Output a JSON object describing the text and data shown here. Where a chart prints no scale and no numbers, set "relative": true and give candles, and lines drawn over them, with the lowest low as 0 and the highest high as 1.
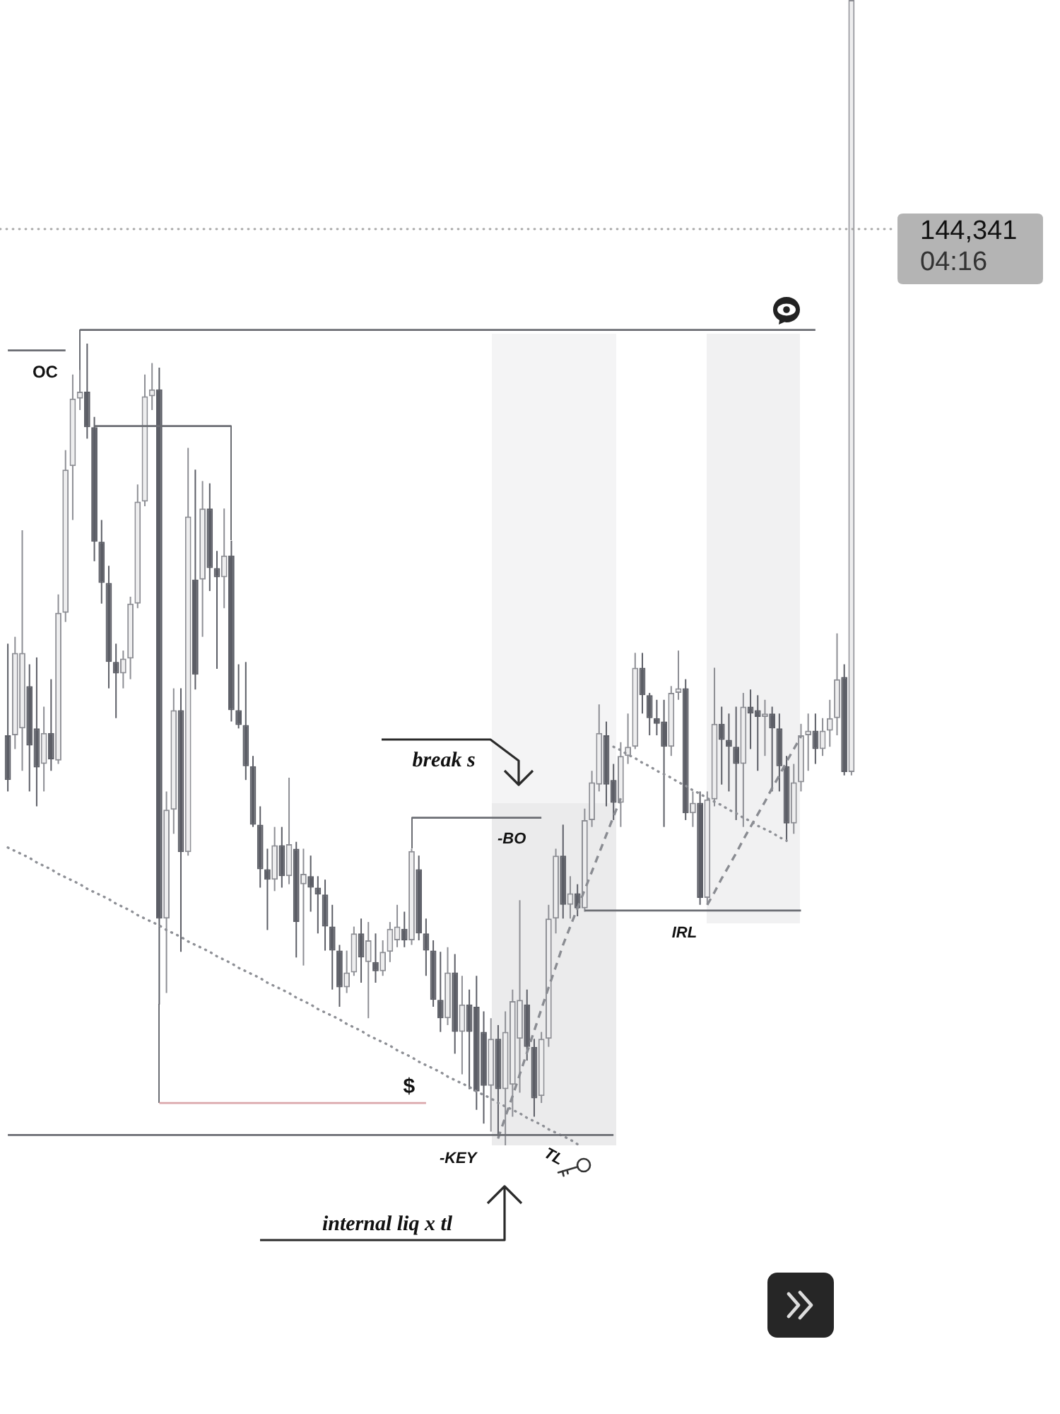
{
  "chart_data": {
    "type": "candlestick",
    "relative": true,
    "tick_labels": false,
    "categories": [
      null,
      null,
      null,
      null,
      null,
      null,
      null,
      null,
      null,
      null,
      null,
      null,
      null,
      null,
      null,
      null,
      null,
      null,
      null,
      null,
      null,
      null,
      null,
      null,
      null,
      null,
      null,
      null,
      null,
      null,
      null,
      null,
      null,
      null,
      null,
      null,
      null,
      null,
      null,
      null,
      null,
      null,
      null,
      null,
      null,
      null,
      null,
      null,
      null,
      null,
      null,
      null,
      null,
      null,
      null,
      null,
      null,
      null,
      null,
      null,
      null,
      null,
      null,
      null,
      null,
      null,
      null,
      null,
      null,
      null,
      null,
      null,
      null,
      null,
      null,
      null,
      null,
      null,
      null,
      null,
      null,
      null,
      null,
      null,
      null,
      null,
      null,
      null,
      null,
      null,
      null,
      null,
      null,
      null,
      null,
      null,
      null,
      null,
      null,
      null,
      null,
      null,
      null,
      null,
      null,
      null,
      null,
      null,
      null,
      null,
      null,
      null,
      null,
      null,
      null,
      null,
      null,
      null
    ],
    "ohlc": [
      [
        0.358,
        0.438,
        0.309,
        0.319
      ],
      [
        0.358,
        0.444,
        0.346,
        0.43
      ],
      [
        0.364,
        0.537,
        0.327,
        0.43
      ],
      [
        0.401,
        0.42,
        0.309,
        0.349
      ],
      [
        0.364,
        0.426,
        0.296,
        0.33
      ],
      [
        0.333,
        0.383,
        0.309,
        0.36
      ],
      [
        0.36,
        0.407,
        0.327,
        0.337
      ],
      [
        0.336,
        0.481,
        0.333,
        0.465
      ],
      [
        0.465,
        0.607,
        0.457,
        0.59
      ],
      [
        0.593,
        0.673,
        0.546,
        0.652
      ],
      [
        0.652,
        0.677,
        0.642,
        0.658
      ],
      [
        0.658,
        0.7,
        0.617,
        0.627
      ],
      [
        0.627,
        0.636,
        0.51,
        0.527
      ],
      [
        0.527,
        0.546,
        0.473,
        0.491
      ],
      [
        0.491,
        0.506,
        0.399,
        0.422
      ],
      [
        0.422,
        0.438,
        0.373,
        0.412
      ],
      [
        0.412,
        0.432,
        0.399,
        0.425
      ],
      [
        0.425,
        0.479,
        0.407,
        0.473
      ],
      [
        0.473,
        0.577,
        0.469,
        0.562
      ],
      [
        0.562,
        0.673,
        0.558,
        0.654
      ],
      [
        0.654,
        0.683,
        0.642,
        0.66
      ],
      [
        0.66,
        0.679,
        0.123,
        0.198
      ],
      [
        0.198,
        0.309,
        0.133,
        0.293
      ],
      [
        0.293,
        0.399,
        0.272,
        0.38
      ],
      [
        0.38,
        0.399,
        0.169,
        0.256
      ],
      [
        0.256,
        0.609,
        0.253,
        0.549
      ],
      [
        0.494,
        0.59,
        0.398,
        0.411
      ],
      [
        0.494,
        0.58,
        0.444,
        0.556
      ],
      [
        0.556,
        0.578,
        0.484,
        0.504
      ],
      [
        0.504,
        0.519,
        0.416,
        0.496
      ],
      [
        0.496,
        0.556,
        0.469,
        0.515
      ],
      [
        0.515,
        0.528,
        0.37,
        0.38
      ],
      [
        0.38,
        0.42,
        0.364,
        0.367
      ],
      [
        0.367,
        0.422,
        0.319,
        0.331
      ],
      [
        0.331,
        0.34,
        0.278,
        0.28
      ],
      [
        0.28,
        0.296,
        0.225,
        0.241
      ],
      [
        0.241,
        0.259,
        0.188,
        0.232
      ],
      [
        0.232,
        0.278,
        0.222,
        0.262
      ],
      [
        0.262,
        0.278,
        0.225,
        0.235
      ],
      [
        0.235,
        0.321,
        0.228,
        0.263
      ],
      [
        0.259,
        0.265,
        0.164,
        0.195
      ],
      [
        0.228,
        0.259,
        0.157,
        0.237
      ],
      [
        0.235,
        0.253,
        0.204,
        0.225
      ],
      [
        0.225,
        0.235,
        0.185,
        0.219
      ],
      [
        0.219,
        0.232,
        0.17,
        0.191
      ],
      [
        0.191,
        0.21,
        0.136,
        0.17
      ],
      [
        0.17,
        0.175,
        0.121,
        0.138
      ],
      [
        0.138,
        0.17,
        0.133,
        0.151
      ],
      [
        0.151,
        0.191,
        0.148,
        0.185
      ],
      [
        0.185,
        0.198,
        0.142,
        0.164
      ],
      [
        0.16,
        0.195,
        0.111,
        0.179
      ],
      [
        0.16,
        0.185,
        0.142,
        0.152
      ],
      [
        0.152,
        0.179,
        0.148,
        0.169
      ],
      [
        0.169,
        0.195,
        0.16,
        0.189
      ],
      [
        0.179,
        0.21,
        0.173,
        0.191
      ],
      [
        0.189,
        0.204,
        0.173,
        0.179
      ],
      [
        0.179,
        0.259,
        0.175,
        0.257
      ],
      [
        0.241,
        0.253,
        0.179,
        0.185
      ],
      [
        0.185,
        0.198,
        0.148,
        0.17
      ],
      [
        0.17,
        0.179,
        0.121,
        0.127
      ],
      [
        0.127,
        0.169,
        0.099,
        0.111
      ],
      [
        0.111,
        0.173,
        0.105,
        0.151
      ],
      [
        0.151,
        0.167,
        0.08,
        0.099
      ],
      [
        0.099,
        0.148,
        0.062,
        0.123
      ],
      [
        0.123,
        0.136,
        0.049,
        0.099
      ],
      [
        0.121,
        0.148,
        0.031,
        0.047
      ],
      [
        0.099,
        0.117,
        0.019,
        0.052
      ],
      [
        0.052,
        0.111,
        0.012,
        0.093
      ],
      [
        0.093,
        0.105,
        0.006,
        0.049
      ],
      [
        0.049,
        0.117,
        0,
        0.099
      ],
      [
        0.053,
        0.136,
        0.025,
        0.126
      ],
      [
        0.093,
        0.214,
        0.046,
        0.127
      ],
      [
        0.123,
        0.136,
        0.074,
        0.086
      ],
      [
        0.086,
        0.093,
        0.025,
        0.041
      ],
      [
        0.043,
        0.099,
        0.037,
        0.093
      ],
      [
        0.093,
        0.21,
        0.086,
        0.198
      ],
      [
        0.198,
        0.259,
        0.185,
        0.253
      ],
      [
        0.253,
        0.28,
        0.198,
        0.21
      ],
      [
        0.21,
        0.235,
        0.198,
        0.22
      ],
      [
        0.22,
        0.228,
        0.2,
        0.207
      ],
      [
        0.207,
        0.294,
        0.204,
        0.284
      ],
      [
        0.284,
        0.327,
        0.278,
        0.317
      ],
      [
        0.315,
        0.385,
        0.309,
        0.36
      ],
      [
        0.358,
        0.37,
        0.296,
        0.315
      ],
      [
        0.319,
        0.333,
        0.284,
        0.299
      ],
      [
        0.299,
        0.352,
        0.278,
        0.34
      ],
      [
        0.34,
        0.377,
        0.333,
        0.348
      ],
      [
        0.348,
        0.43,
        0.346,
        0.417
      ],
      [
        0.417,
        0.43,
        0.377,
        0.393
      ],
      [
        0.393,
        0.395,
        0.358,
        0.373
      ],
      [
        0.373,
        0.389,
        0.358,
        0.368
      ],
      [
        0.37,
        0.389,
        0.278,
        0.348
      ],
      [
        0.348,
        0.401,
        0.34,
        0.395
      ],
      [
        0.395,
        0.432,
        0.389,
        0.399
      ],
      [
        0.399,
        0.407,
        0.284,
        0.29
      ],
      [
        0.29,
        0.309,
        0.278,
        0.299
      ],
      [
        0.299,
        0.309,
        0.21,
        0.216
      ],
      [
        0.216,
        0.309,
        0.21,
        0.302
      ],
      [
        0.302,
        0.417,
        0.296,
        0.368
      ],
      [
        0.368,
        0.383,
        0.315,
        0.354
      ],
      [
        0.354,
        0.377,
        0.309,
        0.348
      ],
      [
        0.348,
        0.383,
        0.284,
        0.333
      ],
      [
        0.333,
        0.395,
        0.278,
        0.383
      ],
      [
        0.383,
        0.398,
        0.346,
        0.377
      ],
      [
        0.38,
        0.393,
        0.327,
        0.374
      ],
      [
        0.374,
        0.389,
        0.34,
        0.377
      ],
      [
        0.377,
        0.383,
        0.309,
        0.364
      ],
      [
        0.364,
        0.377,
        0.309,
        0.331
      ],
      [
        0.331,
        0.34,
        0.265,
        0.281
      ],
      [
        0.281,
        0.333,
        0.272,
        0.317
      ],
      [
        0.317,
        0.368,
        0.309,
        0.358
      ],
      [
        0.358,
        0.377,
        0.327,
        0.362
      ],
      [
        0.362,
        0.377,
        0.333,
        0.346
      ],
      [
        0.346,
        0.373,
        0.34,
        0.362
      ],
      [
        0.362,
        0.389,
        0.348,
        0.373
      ],
      [
        0.373,
        0.447,
        0.358,
        0.407
      ],
      [
        0.409,
        0.42,
        0.323,
        0.326
      ],
      [
        0.326,
        1,
        0.323,
        1
      ]
    ],
    "colors": [
      "#5c5e66",
      "#8d8e94",
      "#8d8e94",
      "#5c5e66",
      "#5c5e66",
      "#8d8e94",
      "#5c5e66",
      "#8d8e94",
      "#8d8e94",
      "#8d8e94",
      "#8d8e94",
      "#5c5e66",
      "#5c5e66",
      "#5c5e66",
      "#5c5e66",
      "#5c5e66",
      "#8d8e94",
      "#8d8e94",
      "#8d8e94",
      "#8d8e94",
      "#8d8e94",
      "#5c5e66",
      "#8d8e94",
      "#8d8e94",
      "#5c5e66",
      "#8d8e94",
      "#5c5e66",
      "#8d8e94",
      "#5c5e66",
      "#5c5e66",
      "#8d8e94",
      "#5c5e66",
      "#5c5e66",
      "#5c5e66",
      "#5c5e66",
      "#5c5e66",
      "#5c5e66",
      "#8d8e94",
      "#5c5e66",
      "#8d8e94",
      "#5c5e66",
      "#8d8e94",
      "#5c5e66",
      "#5c5e66",
      "#5c5e66",
      "#5c5e66",
      "#5c5e66",
      "#8d8e94",
      "#8d8e94",
      "#5c5e66",
      "#8d8e94",
      "#5c5e66",
      "#8d8e94",
      "#8d8e94",
      "#8d8e94",
      "#5c5e66",
      "#8d8e94",
      "#5c5e66",
      "#5c5e66",
      "#5c5e66",
      "#5c5e66",
      "#8d8e94",
      "#5c5e66",
      "#8d8e94",
      "#5c5e66",
      "#5c5e66",
      "#5c5e66",
      "#8d8e94",
      "#5c5e66",
      "#8d8e94",
      "#8d8e94",
      "#8d8e94",
      "#5c5e66",
      "#5c5e66",
      "#8d8e94",
      "#8d8e94",
      "#8d8e94",
      "#5c5e66",
      "#8d8e94",
      "#5c5e66",
      "#8d8e94",
      "#8d8e94",
      "#8d8e94",
      "#5c5e66",
      "#5c5e66",
      "#8d8e94",
      "#8d8e94",
      "#8d8e94",
      "#5c5e66",
      "#5c5e66",
      "#5c5e66",
      "#5c5e66",
      "#8d8e94",
      "#8d8e94",
      "#5c5e66",
      "#8d8e94",
      "#5c5e66",
      "#8d8e94",
      "#8d8e94",
      "#5c5e66",
      "#5c5e66",
      "#5c5e66",
      "#8d8e94",
      "#5c5e66",
      "#5c5e66",
      "#8d8e94",
      "#5c5e66",
      "#5c5e66",
      "#5c5e66",
      "#8d8e94",
      "#8d8e94",
      "#8d8e94",
      "#5c5e66",
      "#8d8e94",
      "#8d8e94",
      "#8d8e94",
      "#5c5e66",
      "#8d8e94"
    ],
    "series": [
      {
        "type": "line",
        "name": "OC",
        "color": "#6b6d73",
        "line_style": "solid",
        "values": [
          0.694,
          0.694,
          0.694,
          0.694,
          0.694,
          0.694,
          0.694,
          0.694,
          0.694,
          null,
          null,
          null,
          null,
          null,
          null,
          null,
          null,
          null,
          null,
          null,
          null,
          null,
          null,
          null,
          null,
          null,
          null,
          null,
          null,
          null,
          null,
          null,
          null,
          null,
          null,
          null,
          null,
          null,
          null,
          null,
          null,
          null,
          null,
          null,
          null,
          null,
          null,
          null,
          null,
          null,
          null,
          null,
          null,
          null,
          null,
          null,
          null,
          null,
          null,
          null,
          null,
          null,
          null,
          null,
          null,
          null,
          null,
          null,
          null,
          null,
          null,
          null,
          null,
          null,
          null,
          null,
          null,
          null,
          null,
          null,
          null,
          null,
          null,
          null,
          null,
          null,
          null,
          null,
          null,
          null,
          null,
          null,
          null,
          null,
          null,
          null,
          null,
          null,
          null,
          null,
          null,
          null,
          null,
          null,
          null,
          null,
          null,
          null,
          null,
          null,
          null,
          null,
          null,
          null,
          null,
          null,
          null,
          null
        ]
      },
      {
        "type": "line",
        "color": "#6b6d73",
        "line_style": "solid",
        "values": [
          null,
          null,
          null,
          null,
          null,
          null,
          null,
          null,
          null,
          null,
          0.712,
          0.712,
          0.712,
          0.712,
          0.712,
          0.712,
          0.712,
          0.712,
          0.712,
          0.712,
          0.712,
          0.712,
          0.712,
          0.712,
          0.712,
          0.712,
          0.712,
          0.712,
          0.712,
          0.712,
          0.712,
          0.712,
          0.712,
          0.712,
          0.712,
          0.712,
          0.712,
          0.712,
          0.712,
          0.712,
          0.712,
          0.712,
          0.712,
          0.712,
          0.712,
          0.712,
          0.712,
          0.712,
          0.712,
          0.712,
          0.712,
          0.712,
          0.712,
          0.712,
          0.712,
          0.712,
          0.712,
          0.712,
          0.712,
          0.712,
          0.712,
          0.712,
          0.712,
          0.712,
          0.712,
          0.712,
          0.712,
          0.712,
          0.712,
          0.712,
          0.712,
          0.712,
          0.712,
          0.712,
          0.712,
          0.712,
          0.712,
          0.712,
          0.712,
          0.712,
          0.712,
          0.712,
          0.712,
          0.712,
          0.712,
          0.712,
          0.712,
          0.712,
          0.712,
          0.712,
          0.712,
          0.712,
          0.712,
          0.712,
          0.712,
          0.712,
          0.712,
          0.712,
          0.712,
          0.712,
          0.712,
          0.712,
          0.712,
          0.712,
          0.712,
          0.712,
          0.712,
          0.712,
          0.712,
          0.712,
          0.712,
          0.712,
          0.712,
          null,
          null,
          null,
          null,
          null
        ]
      },
      {
        "type": "line",
        "color": "#6b6d73",
        "line_style": "solid",
        "values": [
          null,
          null,
          null,
          null,
          null,
          null,
          null,
          null,
          null,
          null,
          null,
          null,
          0.628,
          0.628,
          0.628,
          0.628,
          0.628,
          0.628,
          0.628,
          0.628,
          0.628,
          0.628,
          0.628,
          0.628,
          0.628,
          0.628,
          0.628,
          0.628,
          0.628,
          0.628,
          0.628,
          0.628,
          null,
          null,
          null,
          null,
          null,
          null,
          null,
          null,
          null,
          null,
          null,
          null,
          null,
          null,
          null,
          null,
          null,
          null,
          null,
          null,
          null,
          null,
          null,
          null,
          null,
          null,
          null,
          null,
          null,
          null,
          null,
          null,
          null,
          null,
          null,
          null,
          null,
          null,
          null,
          null,
          null,
          null,
          null,
          null,
          null,
          null,
          null,
          null,
          null,
          null,
          null,
          null,
          null,
          null,
          null,
          null,
          null,
          null,
          null,
          null,
          null,
          null,
          null,
          null,
          null,
          null,
          null,
          null,
          null,
          null,
          null,
          null,
          null,
          null,
          null,
          null,
          null,
          null,
          null,
          null,
          null,
          null,
          null,
          null,
          null,
          null
        ]
      },
      {
        "type": "line",
        "name": "$",
        "color": "#dba7ab",
        "line_style": "solid",
        "values": [
          null,
          null,
          null,
          null,
          null,
          null,
          null,
          null,
          null,
          null,
          null,
          null,
          null,
          null,
          null,
          null,
          null,
          null,
          null,
          null,
          null,
          0.037,
          0.037,
          0.037,
          0.037,
          0.037,
          0.037,
          0.037,
          0.037,
          0.037,
          0.037,
          0.037,
          0.037,
          0.037,
          0.037,
          0.037,
          0.037,
          0.037,
          0.037,
          0.037,
          0.037,
          0.037,
          0.037,
          0.037,
          0.037,
          0.037,
          0.037,
          0.037,
          0.037,
          0.037,
          0.037,
          0.037,
          0.037,
          0.037,
          0.037,
          0.037,
          0.037,
          0.037,
          0.037,
          null,
          null,
          null,
          null,
          null,
          null,
          null,
          null,
          null,
          null,
          null,
          null,
          null,
          null,
          null,
          null,
          null,
          null,
          null,
          null,
          null,
          null,
          null,
          null,
          null,
          null,
          null,
          null,
          null,
          null,
          null,
          null,
          null,
          null,
          null,
          null,
          null,
          null,
          null,
          null,
          null,
          null,
          null,
          null,
          null,
          null,
          null,
          null,
          null,
          null,
          null,
          null,
          null,
          null,
          null,
          null,
          null,
          null,
          null
        ]
      },
      {
        "type": "line",
        "name": "-KEY",
        "color": "#6b6d73",
        "line_style": "solid",
        "values": [
          0.009,
          0.009,
          0.009,
          0.009,
          0.009,
          0.009,
          0.009,
          0.009,
          0.009,
          0.009,
          0.009,
          0.009,
          0.009,
          0.009,
          0.009,
          0.009,
          0.009,
          0.009,
          0.009,
          0.009,
          0.009,
          0.009,
          0.009,
          0.009,
          0.009,
          0.009,
          0.009,
          0.009,
          0.009,
          0.009,
          0.009,
          0.009,
          0.009,
          0.009,
          0.009,
          0.009,
          0.009,
          0.009,
          0.009,
          0.009,
          0.009,
          0.009,
          0.009,
          0.009,
          0.009,
          0.009,
          0.009,
          0.009,
          0.009,
          0.009,
          0.009,
          0.009,
          0.009,
          0.009,
          0.009,
          0.009,
          0.009,
          0.009,
          0.009,
          0.009,
          0.009,
          0.009,
          0.009,
          0.009,
          0.009,
          0.009,
          0.009,
          0.009,
          0.009,
          0.009,
          0.009,
          0.009,
          0.009,
          0.009,
          0.009,
          0.009,
          0.009,
          0.009,
          0.009,
          0.009,
          0.009,
          0.009,
          0.009,
          0.009,
          0.009,
          null,
          null,
          null,
          null,
          null,
          null,
          null,
          null,
          null,
          null,
          null,
          null,
          null,
          null,
          null,
          null,
          null,
          null,
          null,
          null,
          null,
          null,
          null,
          null,
          null,
          null,
          null,
          null,
          null,
          null,
          null,
          null,
          null
        ]
      },
      {
        "type": "line",
        "name": "-BO",
        "color": "#6b6d73",
        "line_style": "solid",
        "values": [
          null,
          null,
          null,
          null,
          null,
          null,
          null,
          null,
          null,
          null,
          null,
          null,
          null,
          null,
          null,
          null,
          null,
          null,
          null,
          null,
          null,
          null,
          null,
          null,
          null,
          null,
          null,
          null,
          null,
          null,
          null,
          null,
          null,
          null,
          null,
          null,
          null,
          null,
          null,
          null,
          null,
          null,
          null,
          null,
          null,
          null,
          null,
          null,
          null,
          null,
          null,
          null,
          null,
          null,
          null,
          null,
          0.286,
          0.286,
          0.286,
          0.286,
          0.286,
          0.286,
          0.286,
          0.286,
          0.286,
          0.286,
          0.286,
          0.286,
          0.286,
          0.286,
          0.286,
          0.286,
          0.286,
          0.286,
          0.286,
          null,
          null,
          null,
          null,
          null,
          null,
          null,
          null,
          null,
          null,
          null,
          null,
          null,
          null,
          null,
          null,
          null,
          null,
          null,
          null,
          null,
          null,
          null,
          null,
          null,
          null,
          null,
          null,
          null,
          null,
          null,
          null,
          null,
          null,
          null,
          null,
          null,
          null,
          null,
          null,
          null,
          null,
          null
        ]
      },
      {
        "type": "line",
        "name": "IRL",
        "color": "#6b6d73",
        "line_style": "solid",
        "values": [
          null,
          null,
          null,
          null,
          null,
          null,
          null,
          null,
          null,
          null,
          null,
          null,
          null,
          null,
          null,
          null,
          null,
          null,
          null,
          null,
          null,
          null,
          null,
          null,
          null,
          null,
          null,
          null,
          null,
          null,
          null,
          null,
          null,
          null,
          null,
          null,
          null,
          null,
          null,
          null,
          null,
          null,
          null,
          null,
          null,
          null,
          null,
          null,
          null,
          null,
          null,
          null,
          null,
          null,
          null,
          null,
          null,
          null,
          null,
          null,
          null,
          null,
          null,
          null,
          null,
          null,
          null,
          null,
          null,
          null,
          null,
          null,
          null,
          null,
          null,
          null,
          null,
          null,
          null,
          null,
          0.205,
          0.205,
          0.205,
          0.205,
          0.205,
          0.205,
          0.205,
          0.205,
          0.205,
          0.205,
          0.205,
          0.205,
          0.205,
          0.205,
          0.205,
          0.205,
          0.205,
          0.205,
          0.205,
          0.205,
          0.205,
          0.205,
          0.205,
          0.205,
          0.205,
          0.205,
          0.205,
          0.205,
          0.205,
          0.205,
          0.205,
          null,
          null,
          null,
          null,
          null,
          null,
          null
        ]
      },
      {
        "type": "line",
        "name": "TL",
        "color": "#8e9096",
        "line_style": "dotted",
        "values": [
          0.26,
          0.257,
          0.254,
          0.251,
          0.247,
          0.244,
          0.241,
          0.237,
          0.234,
          0.231,
          0.228,
          0.224,
          0.221,
          0.218,
          0.215,
          0.211,
          0.208,
          0.205,
          0.201,
          0.198,
          0.195,
          0.192,
          0.188,
          0.185,
          0.182,
          0.178,
          0.175,
          0.172,
          0.169,
          0.165,
          0.162,
          0.159,
          0.155,
          0.152,
          0.149,
          0.146,
          0.142,
          0.139,
          0.136,
          0.133,
          0.129,
          0.126,
          0.123,
          0.119,
          0.116,
          0.113,
          0.11,
          0.106,
          0.103,
          0.1,
          0.096,
          0.093,
          0.09,
          0.087,
          0.083,
          0.08,
          0.077,
          0.073,
          0.07,
          0.067,
          0.064,
          0.06,
          0.057,
          0.054,
          0.051,
          0.047,
          0.044,
          0.041,
          0.037,
          0.034,
          0.031,
          0.028,
          0.024,
          0.021,
          0.018,
          0.014,
          0.011,
          0.008,
          0.005,
          0.001,
          null,
          null,
          null,
          null,
          null,
          null,
          null,
          null,
          null,
          null,
          null,
          null,
          null,
          null,
          null,
          null,
          null,
          null,
          null,
          null,
          null,
          null,
          null,
          null,
          null,
          null,
          null,
          null,
          null,
          null,
          null,
          null,
          null,
          null,
          null,
          null,
          null,
          null
        ]
      },
      {
        "type": "line",
        "color": "#8e9096",
        "line_style": "dotted",
        "values": [
          null,
          null,
          null,
          null,
          null,
          null,
          null,
          null,
          null,
          null,
          null,
          null,
          null,
          null,
          null,
          null,
          null,
          null,
          null,
          null,
          null,
          null,
          null,
          null,
          null,
          null,
          null,
          null,
          null,
          null,
          null,
          null,
          null,
          null,
          null,
          null,
          null,
          null,
          null,
          null,
          null,
          null,
          null,
          null,
          null,
          null,
          null,
          null,
          null,
          null,
          null,
          null,
          null,
          null,
          null,
          null,
          null,
          null,
          null,
          null,
          null,
          null,
          null,
          null,
          null,
          null,
          null,
          null,
          null,
          null,
          null,
          null,
          null,
          null,
          null,
          null,
          null,
          null,
          null,
          null,
          null,
          null,
          null,
          null,
          0.348,
          0.345,
          0.341,
          0.338,
          0.334,
          0.331,
          0.327,
          0.324,
          0.321,
          0.317,
          0.314,
          0.31,
          0.307,
          0.303,
          0.3,
          0.297,
          0.293,
          0.29,
          0.286,
          0.283,
          0.279,
          0.276,
          0.273,
          0.269,
          0.266,
          null,
          null,
          null,
          null,
          null,
          null,
          null,
          null,
          null
        ]
      },
      {
        "type": "line",
        "color": "#8a8c92",
        "line_style": "dashed",
        "values": [
          null,
          null,
          null,
          null,
          null,
          null,
          null,
          null,
          null,
          null,
          null,
          null,
          null,
          null,
          null,
          null,
          null,
          null,
          null,
          null,
          null,
          null,
          null,
          null,
          null,
          null,
          null,
          null,
          null,
          null,
          null,
          null,
          null,
          null,
          null,
          null,
          null,
          null,
          null,
          null,
          null,
          null,
          null,
          null,
          null,
          null,
          null,
          null,
          null,
          null,
          null,
          null,
          null,
          null,
          null,
          null,
          null,
          null,
          null,
          null,
          null,
          null,
          null,
          null,
          null,
          null,
          null,
          null,
          0.006,
          0.025,
          0.043,
          0.062,
          0.081,
          0.1,
          0.119,
          0.138,
          0.156,
          0.175,
          0.191,
          0.207,
          0.223,
          0.239,
          0.255,
          0.271,
          0.287,
          0.303,
          null,
          null,
          null,
          null,
          null,
          null,
          null,
          null,
          null,
          null,
          null,
          null,
          null,
          null,
          null,
          null,
          null,
          null,
          null,
          null,
          null,
          null,
          null,
          null,
          null,
          null,
          null,
          null,
          null,
          null,
          null,
          null
        ]
      },
      {
        "type": "line",
        "color": "#8a8c92",
        "line_style": "dashed",
        "values": [
          null,
          null,
          null,
          null,
          null,
          null,
          null,
          null,
          null,
          null,
          null,
          null,
          null,
          null,
          null,
          null,
          null,
          null,
          null,
          null,
          null,
          null,
          null,
          null,
          null,
          null,
          null,
          null,
          null,
          null,
          null,
          null,
          null,
          null,
          null,
          null,
          null,
          null,
          null,
          null,
          null,
          null,
          null,
          null,
          null,
          null,
          null,
          null,
          null,
          null,
          null,
          null,
          null,
          null,
          null,
          null,
          null,
          null,
          null,
          null,
          null,
          null,
          null,
          null,
          null,
          null,
          null,
          null,
          null,
          null,
          null,
          null,
          null,
          null,
          null,
          null,
          null,
          null,
          null,
          null,
          null,
          null,
          null,
          null,
          null,
          null,
          null,
          null,
          null,
          null,
          null,
          null,
          null,
          null,
          null,
          null,
          null,
          0.21,
          0.221,
          0.233,
          0.244,
          0.255,
          0.267,
          0.278,
          0.289,
          0.3,
          0.312,
          0.323,
          0.335,
          0.346,
          0.357,
          null,
          null,
          null,
          null,
          null,
          null,
          null
        ]
      }
    ],
    "ref_lines": [
      {
        "axis": "y",
        "value": 0.8,
        "color": "#a8a8a8",
        "line_style": "dotted"
      }
    ],
    "annotations": [
      "break s",
      "internal liq x tl",
      "144,341",
      "04:16"
    ]
  }
}
